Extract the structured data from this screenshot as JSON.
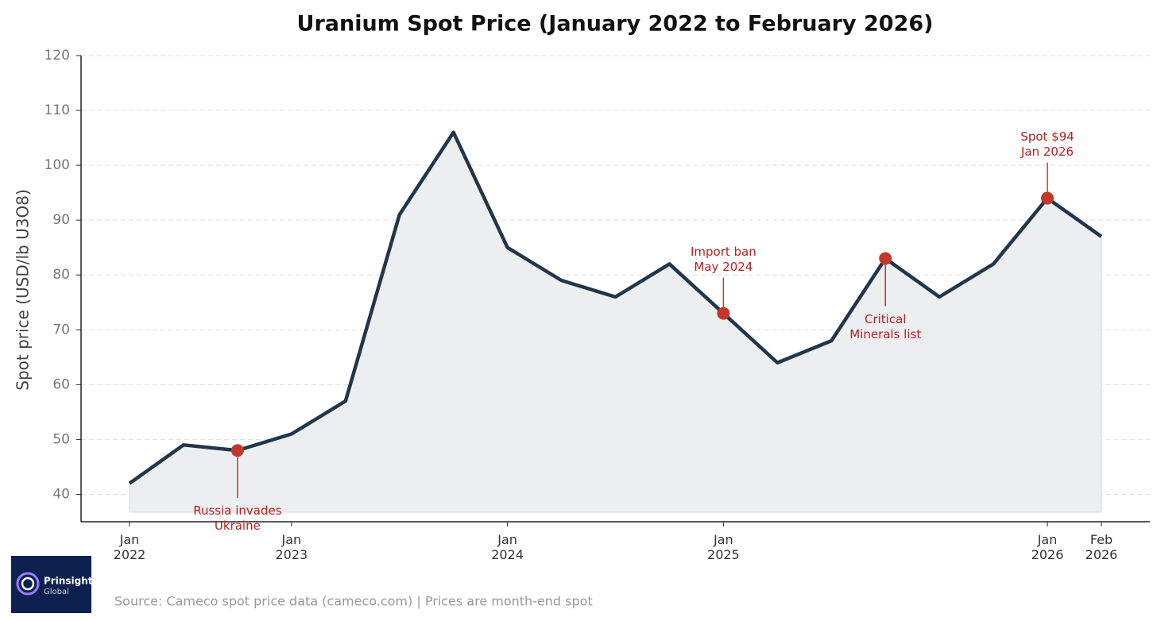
{
  "chart_data": {
    "type": "line",
    "title": "Uranium Spot Price (January 2022 to February 2026)",
    "y_label": "Spot price (USD/lb U3O8)",
    "categories": [
      "Jan\n2022",
      null,
      null,
      "Jan\n2023",
      null,
      null,
      null,
      "Jan\n2024",
      null,
      null,
      null,
      "Jan\n2025",
      null,
      null,
      null,
      null,
      null,
      "Jan\n2026",
      "Feb\n2026"
    ],
    "series": [
      {
        "name": "Uranium spot price",
        "color": "#22364b",
        "fill": "#eceef0",
        "values": [
          42,
          49,
          48,
          51,
          57,
          91,
          106,
          85,
          79,
          76,
          82,
          73,
          64,
          68,
          83,
          76,
          82,
          94,
          87
        ]
      }
    ],
    "ylim": [
      35,
      120
    ],
    "yticks": [
      40,
      50,
      60,
      70,
      80,
      90,
      100,
      110,
      120
    ],
    "grid": true,
    "annotations": [
      {
        "index": 2,
        "text": "Russia invades\nUkraine",
        "position": "below"
      },
      {
        "index": 11,
        "text": "Import ban\nMay 2024",
        "position": "above"
      },
      {
        "index": 14,
        "text": "Critical\nMinerals list",
        "position": "below"
      },
      {
        "index": 17,
        "text": "Spot $94\nJan 2026",
        "position": "above"
      }
    ],
    "annotation_color": "#c0392b",
    "source": "Source: Cameco spot price data (cameco.com)  |  Prices are month-end spot"
  },
  "logo": {
    "name": "Prinsights",
    "subtitle": "Global"
  }
}
